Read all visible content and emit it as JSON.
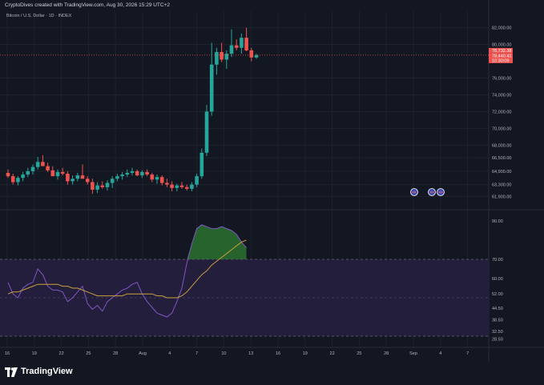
{
  "header": {
    "created_by": "CryptoDives created with TradingView.com, Aug 30, 2026 15:29 UTC+2",
    "symbol": "Bitcoin / U.S. Dollar · 1D · INDEX"
  },
  "brand": {
    "name": "TradingView",
    "logo": "tradingview-logo-icon"
  },
  "colors": {
    "background": "#131722",
    "up": "#26a69a",
    "down": "#ef5350",
    "grid": "#1e222d",
    "rsi_line": "#7e57c2",
    "rsi_ma": "#c8a03c",
    "overbought_fill": "#2e7d32",
    "band_fill": "#241e3d",
    "text": "#b2b5be",
    "event_badge": "#3f51b5"
  },
  "chart_data": [
    {
      "type": "candlestick",
      "title": "",
      "symbol": "Bitcoin / U.S. Dollar · 1D · INDEX",
      "x_ticks": [
        "16",
        "19",
        "22",
        "25",
        "28",
        "Aug",
        "4",
        "7",
        "10",
        "13",
        "16",
        "19",
        "22",
        "25",
        "28",
        "Sep",
        "4",
        "7"
      ],
      "y_ticks": [
        "82,000.00",
        "80,000.00",
        "76,000.00",
        "74,000.00",
        "72,000.00",
        "70,000.00",
        "68,000.00",
        "66,500.00",
        "64,900.00",
        "63,300.00",
        "61,900.00"
      ],
      "ylim": [
        60500,
        83200
      ],
      "price_labels": [
        {
          "value": "78,732.38",
          "color": "#ef5350"
        },
        {
          "value": "78,440.41",
          "color": "#ef5350"
        },
        {
          "value": "10:30:09",
          "color": "#ef5350"
        }
      ],
      "event_badges": 3,
      "candles": [
        {
          "o": 64700,
          "h": 65100,
          "l": 64100,
          "c": 64300
        },
        {
          "o": 64300,
          "h": 64600,
          "l": 63300,
          "c": 63600
        },
        {
          "o": 63600,
          "h": 64300,
          "l": 63200,
          "c": 64100
        },
        {
          "o": 64100,
          "h": 64800,
          "l": 63700,
          "c": 64500
        },
        {
          "o": 64500,
          "h": 65300,
          "l": 64200,
          "c": 64900
        },
        {
          "o": 64900,
          "h": 65700,
          "l": 64500,
          "c": 65400
        },
        {
          "o": 65400,
          "h": 66600,
          "l": 65100,
          "c": 66000
        },
        {
          "o": 66000,
          "h": 66800,
          "l": 65600,
          "c": 65500
        },
        {
          "o": 65500,
          "h": 65900,
          "l": 64800,
          "c": 65000
        },
        {
          "o": 65000,
          "h": 65500,
          "l": 64500,
          "c": 64300
        },
        {
          "o": 64300,
          "h": 65100,
          "l": 63900,
          "c": 64800
        },
        {
          "o": 64800,
          "h": 65300,
          "l": 64400,
          "c": 64600
        },
        {
          "o": 64600,
          "h": 64900,
          "l": 63300,
          "c": 63700
        },
        {
          "o": 63700,
          "h": 64400,
          "l": 63300,
          "c": 64000
        },
        {
          "o": 64000,
          "h": 64700,
          "l": 63700,
          "c": 64400
        },
        {
          "o": 64400,
          "h": 65700,
          "l": 64100,
          "c": 64000
        },
        {
          "o": 64000,
          "h": 64300,
          "l": 63300,
          "c": 63600
        },
        {
          "o": 63600,
          "h": 64000,
          "l": 62200,
          "c": 62700
        },
        {
          "o": 62700,
          "h": 63600,
          "l": 62300,
          "c": 63200
        },
        {
          "o": 63200,
          "h": 63700,
          "l": 62800,
          "c": 63000
        },
        {
          "o": 63000,
          "h": 63800,
          "l": 62600,
          "c": 63500
        },
        {
          "o": 63500,
          "h": 64300,
          "l": 62900,
          "c": 64000
        },
        {
          "o": 64000,
          "h": 64600,
          "l": 63700,
          "c": 64300
        },
        {
          "o": 64300,
          "h": 64800,
          "l": 63900,
          "c": 64500
        },
        {
          "o": 64500,
          "h": 65100,
          "l": 64200,
          "c": 64700
        },
        {
          "o": 64700,
          "h": 65300,
          "l": 64400,
          "c": 64900
        },
        {
          "o": 64900,
          "h": 65100,
          "l": 64300,
          "c": 64400
        },
        {
          "o": 64400,
          "h": 65000,
          "l": 64100,
          "c": 64800
        },
        {
          "o": 64800,
          "h": 65100,
          "l": 64300,
          "c": 64500
        },
        {
          "o": 64500,
          "h": 64700,
          "l": 63600,
          "c": 63900
        },
        {
          "o": 63900,
          "h": 64500,
          "l": 63400,
          "c": 64200
        },
        {
          "o": 64200,
          "h": 64400,
          "l": 63200,
          "c": 63500
        },
        {
          "o": 63500,
          "h": 64000,
          "l": 63000,
          "c": 63300
        },
        {
          "o": 63300,
          "h": 63700,
          "l": 62500,
          "c": 62900
        },
        {
          "o": 62900,
          "h": 63400,
          "l": 62500,
          "c": 63200
        },
        {
          "o": 63200,
          "h": 63600,
          "l": 62800,
          "c": 63000
        },
        {
          "o": 63000,
          "h": 63300,
          "l": 62600,
          "c": 62800
        },
        {
          "o": 62800,
          "h": 63600,
          "l": 62500,
          "c": 63300
        },
        {
          "o": 63300,
          "h": 64600,
          "l": 63000,
          "c": 64300
        },
        {
          "o": 64300,
          "h": 67600,
          "l": 64000,
          "c": 67100
        },
        {
          "o": 67100,
          "h": 72800,
          "l": 66700,
          "c": 72000
        },
        {
          "o": 72000,
          "h": 80200,
          "l": 71500,
          "c": 77600
        },
        {
          "o": 77600,
          "h": 79600,
          "l": 76400,
          "c": 79100
        },
        {
          "o": 79100,
          "h": 80200,
          "l": 77900,
          "c": 78200
        },
        {
          "o": 78200,
          "h": 79300,
          "l": 77100,
          "c": 78900
        },
        {
          "o": 78900,
          "h": 81800,
          "l": 78500,
          "c": 79900
        },
        {
          "o": 79900,
          "h": 80600,
          "l": 79300,
          "c": 79600
        },
        {
          "o": 79600,
          "h": 81300,
          "l": 78900,
          "c": 80800
        },
        {
          "o": 80800,
          "h": 82000,
          "l": 79200,
          "c": 79300
        },
        {
          "o": 79300,
          "h": 79600,
          "l": 78000,
          "c": 78450
        },
        {
          "o": 78450,
          "h": 78900,
          "l": 78300,
          "c": 78730
        }
      ]
    },
    {
      "type": "line",
      "title": "",
      "y_ticks": [
        "90.00",
        "70.00",
        "60.00",
        "52.00",
        "44.50",
        "38.50",
        "32.50",
        "28.50"
      ],
      "ylim": [
        25,
        95
      ],
      "levels": {
        "upper": 70,
        "middle": 50,
        "lower": 30
      },
      "series": [
        {
          "role": "rsi",
          "values": [
            58,
            52,
            50,
            55,
            57,
            58,
            65,
            62,
            56,
            54,
            54,
            53,
            48,
            50,
            53,
            56,
            47,
            44,
            46,
            43,
            48,
            50,
            52,
            54,
            55,
            57,
            58,
            52,
            48,
            45,
            42,
            41,
            40,
            42,
            48,
            55,
            68,
            78,
            86,
            88,
            87,
            86,
            86,
            87,
            86,
            85,
            83,
            79,
            76
          ]
        },
        {
          "role": "rsi-ma",
          "values": [
            52,
            53,
            53,
            54,
            55,
            56,
            57,
            57,
            57,
            57,
            57,
            56,
            56,
            55,
            55,
            54,
            53,
            52,
            51,
            51,
            51,
            51,
            51,
            51,
            52,
            52,
            52,
            52,
            52,
            52,
            51,
            51,
            50,
            50,
            50,
            51,
            53,
            56,
            59,
            62,
            64,
            67,
            69,
            71,
            73,
            75,
            77,
            79,
            80
          ]
        }
      ]
    }
  ]
}
